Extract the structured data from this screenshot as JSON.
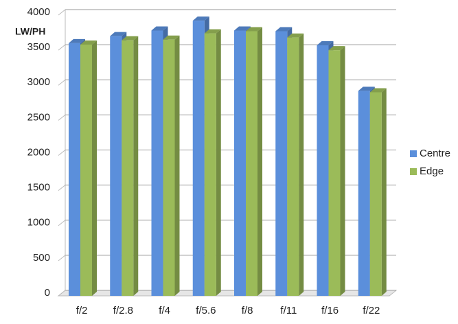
{
  "chart_data": {
    "type": "bar3d",
    "y_label": "LW/PH",
    "categories": [
      "f/2",
      "f/2.8",
      "f/4",
      "f/5.6",
      "f/8",
      "f/11",
      "f/16",
      "f/22"
    ],
    "series": [
      {
        "name": "Centre",
        "color": "#5b8fdb",
        "values": [
          3600,
          3700,
          3780,
          3920,
          3780,
          3770,
          3570,
          2920
        ]
      },
      {
        "name": "Edge",
        "color": "#9bbb59",
        "values": [
          3580,
          3640,
          3650,
          3740,
          3770,
          3680,
          3500,
          2900
        ]
      }
    ],
    "ylim": [
      0,
      4000
    ],
    "yticks": [
      0,
      500,
      1000,
      1500,
      2000,
      2500,
      3000,
      3500,
      4000
    ],
    "grid": true,
    "legend": "right"
  }
}
